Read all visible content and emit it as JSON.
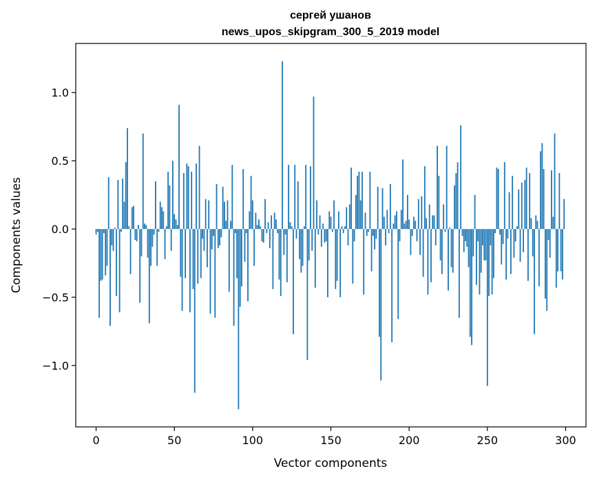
{
  "chart_data": {
    "type": "bar",
    "title": "сергей ушанов",
    "subtitle": "news_upos_skipgram_300_5_2019 model",
    "xlabel": "Vector components",
    "ylabel": "Components values",
    "xlim": [
      -13,
      313
    ],
    "ylim": [
      -1.45,
      1.36
    ],
    "xticks": [
      0,
      50,
      100,
      150,
      200,
      250,
      300
    ],
    "xtick_labels": [
      "0",
      "50",
      "100",
      "150",
      "200",
      "250",
      "300"
    ],
    "yticks": [
      -1.0,
      -0.5,
      0.0,
      0.5,
      1.0
    ],
    "ytick_labels": [
      "−1.0",
      "−0.5",
      "0.0",
      "0.5",
      "1.0"
    ],
    "bar_color": "#1f77b4",
    "grid": false,
    "legend": "none",
    "values": [
      -0.04,
      -0.02,
      -0.65,
      -0.38,
      -0.37,
      -0.03,
      -0.34,
      -0.27,
      0.38,
      -0.71,
      -0.12,
      -0.16,
      0.01,
      -0.49,
      0.36,
      -0.61,
      -0.02,
      0.37,
      0.2,
      0.49,
      0.74,
      0.02,
      -0.33,
      0.16,
      0.17,
      -0.08,
      -0.09,
      0.03,
      -0.54,
      -0.2,
      0.7,
      0.04,
      0.03,
      -0.21,
      -0.69,
      -0.27,
      -0.13,
      -0.04,
      0.35,
      -0.27,
      -0.02,
      0.2,
      0.16,
      0.13,
      -0.22,
      0.02,
      0.42,
      0.32,
      -0.16,
      0.5,
      0.11,
      0.07,
      0.03,
      0.91,
      -0.35,
      -0.6,
      0.41,
      -0.36,
      0.48,
      0.46,
      -0.61,
      0.42,
      -0.44,
      -1.2,
      0.48,
      -0.4,
      0.61,
      -0.36,
      -0.07,
      -0.16,
      0.22,
      -0.28,
      0.21,
      -0.62,
      -0.15,
      -0.05,
      -0.65,
      0.33,
      -0.14,
      -0.12,
      -0.06,
      0.31,
      0.2,
      0.06,
      0.21,
      -0.46,
      0.06,
      0.47,
      -0.71,
      -0.03,
      -0.36,
      -1.32,
      -0.57,
      -0.42,
      0.44,
      -0.24,
      -0.03,
      -0.53,
      0.13,
      0.39,
      0.21,
      -0.27,
      0.12,
      0.03,
      0.07,
      0.02,
      -0.09,
      -0.1,
      0.22,
      -0.03,
      0.05,
      -0.14,
      0.1,
      -0.44,
      0.12,
      0.07,
      -0.03,
      -0.37,
      -0.49,
      1.23,
      -0.19,
      -0.04,
      -0.39,
      0.47,
      0.05,
      0.02,
      -0.77,
      0.47,
      -0.07,
      0.35,
      -0.22,
      -0.32,
      -0.27,
      0.02,
      0.47,
      -0.96,
      -0.23,
      0.46,
      -0.16,
      0.97,
      -0.43,
      0.21,
      -0.04,
      0.1,
      -0.13,
      0.04,
      -0.1,
      -0.09,
      -0.5,
      0.13,
      0.09,
      -0.02,
      0.21,
      -0.44,
      -0.38,
      0.13,
      -0.5,
      0.02,
      -0.03,
      0.02,
      0.16,
      -0.12,
      0.18,
      0.45,
      -0.4,
      -0.09,
      0.25,
      0.39,
      0.42,
      0.21,
      0.42,
      -0.48,
      0.12,
      -0.05,
      -0.02,
      0.42,
      -0.31,
      -0.05,
      -0.15,
      -0.07,
      0.31,
      -0.79,
      -1.11,
      0.3,
      0.09,
      -0.12,
      0.14,
      -0.03,
      0.33,
      -0.83,
      0.04,
      0.1,
      0.13,
      -0.66,
      -0.09,
      0.14,
      0.51,
      0.04,
      0.06,
      0.25,
      0.07,
      -0.19,
      -0.05,
      0.09,
      0.06,
      -0.09,
      0.22,
      -0.19,
      0.24,
      -0.35,
      0.46,
      0.08,
      -0.48,
      0.18,
      -0.39,
      0.1,
      0.1,
      -0.12,
      0.61,
      0.39,
      -0.23,
      -0.33,
      0.18,
      -0.02,
      0.61,
      -0.45,
      0.01,
      -0.28,
      -0.32,
      0.32,
      0.41,
      0.49,
      -0.65,
      0.76,
      -0.05,
      -0.17,
      -0.09,
      -0.13,
      -0.28,
      -0.79,
      -0.85,
      -0.2,
      0.25,
      -0.41,
      -0.09,
      -0.48,
      -0.32,
      -0.12,
      -0.23,
      -0.23,
      -1.15,
      -0.49,
      -0.12,
      -0.48,
      -0.36,
      -0.03,
      0.45,
      0.44,
      -0.04,
      -0.26,
      -0.11,
      0.49,
      -0.37,
      -0.07,
      0.27,
      -0.33,
      0.39,
      -0.21,
      -0.09,
      0.02,
      0.29,
      -0.24,
      0.34,
      -0.17,
      0.36,
      0.45,
      -0.38,
      0.41,
      0.08,
      -0.2,
      -0.77,
      0.1,
      0.06,
      -0.42,
      0.57,
      0.63,
      0.44,
      -0.51,
      -0.6,
      -0.08,
      -0.21,
      0.43,
      0.09,
      0.7,
      -0.43,
      -0.31,
      0.41,
      -0.31,
      -0.37,
      0.22
    ]
  }
}
